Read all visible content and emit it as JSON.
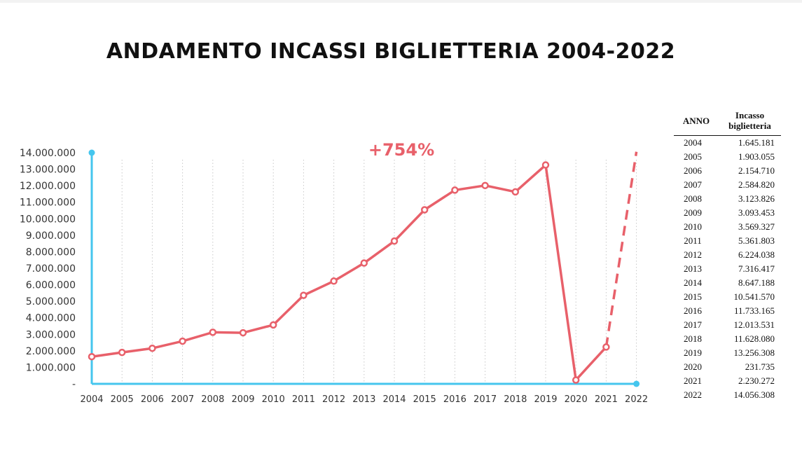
{
  "title": "ANDAMENTO INCASSI BIGLIETTERIA 2004-2022",
  "annotation": "+754%",
  "colors": {
    "line": "#e8606a",
    "axis": "#45c6ee",
    "gridline": "#c8c8c8",
    "text": "#111111",
    "tick_text": "#333333"
  },
  "table": {
    "headers": {
      "year": "ANNO",
      "value": "Incasso biglietteria"
    },
    "rows": [
      {
        "year": "2004",
        "value": "1.645.181"
      },
      {
        "year": "2005",
        "value": "1.903.055"
      },
      {
        "year": "2006",
        "value": "2.154.710"
      },
      {
        "year": "2007",
        "value": "2.584.820"
      },
      {
        "year": "2008",
        "value": "3.123.826"
      },
      {
        "year": "2009",
        "value": "3.093.453"
      },
      {
        "year": "2010",
        "value": "3.569.327"
      },
      {
        "year": "2011",
        "value": "5.361.803"
      },
      {
        "year": "2012",
        "value": "6.224.038"
      },
      {
        "year": "2013",
        "value": "7.316.417"
      },
      {
        "year": "2014",
        "value": "8.647.188"
      },
      {
        "year": "2015",
        "value": "10.541.570"
      },
      {
        "year": "2016",
        "value": "11.733.165"
      },
      {
        "year": "2017",
        "value": "12.013.531"
      },
      {
        "year": "2018",
        "value": "11.628.080"
      },
      {
        "year": "2019",
        "value": "13.256.308"
      },
      {
        "year": "2020",
        "value": "231.735"
      },
      {
        "year": "2021",
        "value": "2.230.272"
      },
      {
        "year": "2022",
        "value": "14.056.308"
      }
    ]
  },
  "chart_data": {
    "type": "line",
    "title": "ANDAMENTO INCASSI BIGLIETTERIA 2004-2022",
    "xlabel": "",
    "ylabel": "",
    "categories": [
      "2004",
      "2005",
      "2006",
      "2007",
      "2008",
      "2009",
      "2010",
      "2011",
      "2012",
      "2013",
      "2014",
      "2015",
      "2016",
      "2017",
      "2018",
      "2019",
      "2020",
      "2021",
      "2022"
    ],
    "series": [
      {
        "values": [
          1645181,
          1903055,
          2154710,
          2584820,
          3123826,
          3093453,
          3569327,
          5361803,
          6224038,
          7316417,
          8647188,
          10541570,
          11733165,
          12013531,
          11628080,
          13256308,
          231735,
          2230272,
          14056308
        ],
        "style": "solid with circle markers 2004-2021, dashed segment 2021-2022 without marker"
      }
    ],
    "ylim": [
      0,
      14000000
    ],
    "yticks": [
      0,
      1000000,
      2000000,
      3000000,
      4000000,
      5000000,
      6000000,
      7000000,
      8000000,
      9000000,
      10000000,
      11000000,
      12000000,
      13000000,
      14000000
    ],
    "ytick_labels": [
      "-",
      "1.000.000",
      "2.000.000",
      "3.000.000",
      "4.000.000",
      "5.000.000",
      "6.000.000",
      "7.000.000",
      "8.000.000",
      "9.000.000",
      "10.000.000",
      "11.000.000",
      "12.000.000",
      "13.000.000",
      "14.000.000"
    ],
    "grid": "vertical dotted lines at each year",
    "legend": "none",
    "annotations": [
      "+754%"
    ]
  }
}
